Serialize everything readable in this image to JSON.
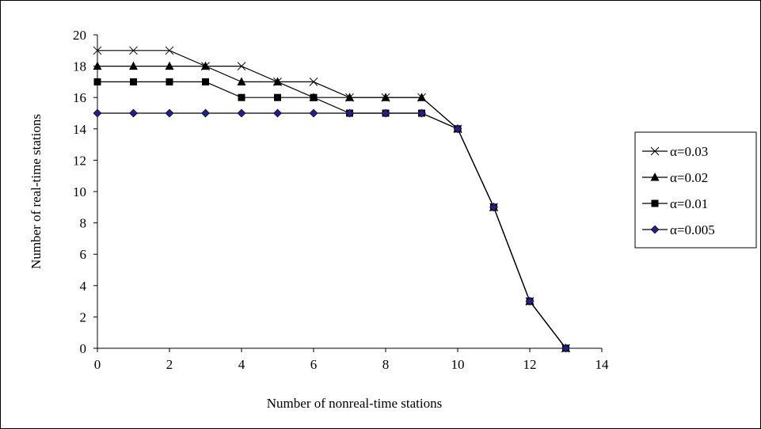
{
  "chart_data": {
    "type": "line",
    "title": "",
    "xlabel": "Number of nonreal-time stations",
    "ylabel": "Number of real-time stations",
    "xlim": [
      0,
      14
    ],
    "ylim": [
      0,
      20
    ],
    "xticks": [
      "0",
      "2",
      "4",
      "6",
      "8",
      "10",
      "12",
      "14"
    ],
    "yticks": [
      "0",
      "2",
      "4",
      "6",
      "8",
      "10",
      "12",
      "14",
      "16",
      "18",
      "20"
    ],
    "grid": false,
    "legend_position": "right",
    "series": [
      {
        "name": "α=0.03",
        "marker": "x",
        "color": "#000000",
        "x": [
          0,
          1,
          2,
          3,
          4,
          5,
          6,
          7,
          8,
          9,
          10,
          11,
          12,
          13
        ],
        "y": [
          19,
          19,
          19,
          18,
          18,
          17,
          17,
          16,
          16,
          16,
          14,
          9,
          3,
          0
        ]
      },
      {
        "name": "α=0.02",
        "marker": "triangle",
        "color": "#000000",
        "x": [
          0,
          1,
          2,
          3,
          4,
          5,
          6,
          7,
          8,
          9,
          10,
          11,
          12,
          13
        ],
        "y": [
          18,
          18,
          18,
          18,
          17,
          17,
          16,
          16,
          16,
          16,
          14,
          9,
          3,
          0
        ]
      },
      {
        "name": "α=0.01",
        "marker": "square",
        "color": "#000000",
        "x": [
          0,
          1,
          2,
          3,
          4,
          5,
          6,
          7,
          8,
          9,
          10,
          11,
          12,
          13
        ],
        "y": [
          17,
          17,
          17,
          17,
          16,
          16,
          16,
          15,
          15,
          15,
          14,
          9,
          3,
          0
        ]
      },
      {
        "name": "α=0.005",
        "marker": "diamond",
        "color": "#1f1f8f",
        "x": [
          0,
          1,
          2,
          3,
          4,
          5,
          6,
          7,
          8,
          9,
          10,
          11,
          12,
          13
        ],
        "y": [
          15,
          15,
          15,
          15,
          15,
          15,
          15,
          15,
          15,
          15,
          14,
          9,
          3,
          0
        ]
      }
    ]
  }
}
